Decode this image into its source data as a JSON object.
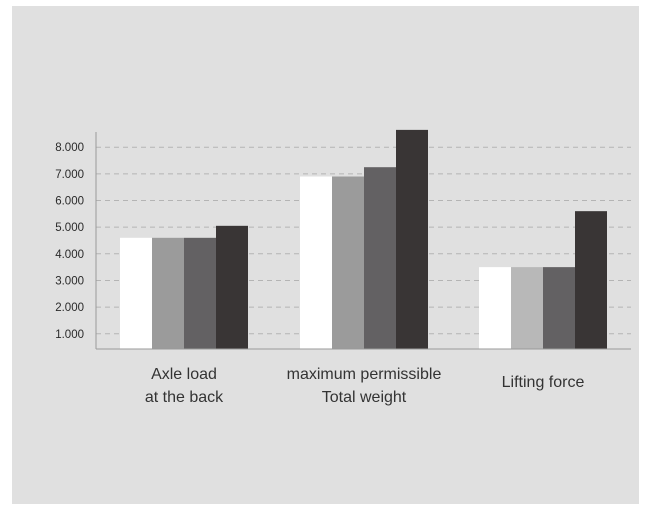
{
  "chart_data": {
    "type": "bar",
    "categories": [
      [
        "Axle load",
        "at the back"
      ],
      [
        "maximum permissible",
        "Total weight"
      ],
      [
        "Lifting force"
      ]
    ],
    "series": [
      {
        "values": [
          4600,
          6900,
          3500
        ]
      },
      {
        "values": [
          4600,
          6900,
          3500
        ]
      },
      {
        "values": [
          4600,
          7250,
          3500
        ]
      },
      {
        "values": [
          5050,
          8650,
          5600
        ]
      }
    ],
    "series_colors": [
      [
        "#ffffff",
        "#ffffff",
        "#ffffff"
      ],
      [
        "#9b9b9b",
        "#9b9b9b",
        "#b8b8b8"
      ],
      [
        "#636163",
        "#636163",
        "#636163"
      ],
      [
        "#393535",
        "#393535",
        "#393535"
      ]
    ],
    "yticks": [
      1000,
      2000,
      3000,
      4000,
      5000,
      6000,
      7000,
      8000
    ],
    "ytick_labels": [
      "1.000",
      "2.000",
      "3.000",
      "4.000",
      "5.000",
      "6.000",
      "7.000",
      "8.000"
    ],
    "ylim": [
      428,
      8700
    ],
    "grid": true,
    "title": "",
    "xlabel": "",
    "ylabel": ""
  }
}
